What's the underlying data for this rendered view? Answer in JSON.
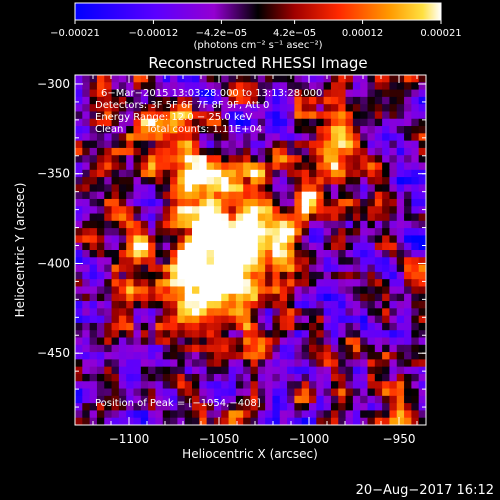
{
  "chart_data": {
    "type": "heatmap",
    "title": "Reconstructed RHESSI Image",
    "xlabel": "Heliocentric X (arcsec)",
    "ylabel": "Heliocentric Y (arcsec)",
    "xlim": [
      -1130,
      -935
    ],
    "ylim": [
      -490,
      -295
    ],
    "x_ticks": [
      -1100,
      -1050,
      -1000,
      -950
    ],
    "y_ticks": [
      -300,
      -350,
      -400,
      -450
    ],
    "x_tick_labels": [
      "−1100",
      "−1050",
      "−1000",
      "−950"
    ],
    "y_tick_labels": [
      "−300",
      "−350",
      "−400",
      "−450"
    ],
    "colorbar": {
      "range": [
        -0.00021,
        0.00021
      ],
      "tick_values": [
        -0.00021,
        -0.00012,
        -4.2e-05,
        4.2e-05,
        0.00012,
        0.00021
      ],
      "tick_labels": [
        "−0.00021",
        "−0.00012",
        "−4.2e−05",
        "4.2e−05",
        "0.00012",
        "0.00021"
      ],
      "unit_label": "(photons cm⁻² s⁻¹ asec⁻²)"
    },
    "annotations": {
      "time_range": "6−Mar−2015 13:03:28.000 to 13:13:28.000",
      "detectors": "Detectors: 3F 5F 6F 7F 8F 9F, Att 0",
      "energy_range": "Energy Range: 12.0 − 25.0 keV",
      "algorithm": "Clean",
      "total_counts": "Total counts: 1.11E+04",
      "peak": "Position of Peak = [−1054,−408]"
    },
    "peak_position": [
      -1054,
      -408
    ],
    "footer_timestamp": "20−Aug−2017 16:12"
  }
}
